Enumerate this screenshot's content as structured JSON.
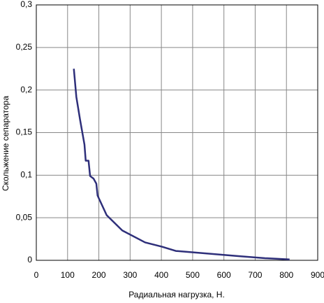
{
  "chart_data": {
    "type": "line",
    "x_label": "Радиальная нагрузка, Н.",
    "y_label": "Скольжение сепаратора",
    "series": [
      {
        "color": "#2e2f7a",
        "x": [
          120,
          128,
          140,
          154,
          158,
          167,
          172,
          183,
          192,
          196,
          225,
          275,
          348,
          402,
          446,
          643,
          732,
          810
        ],
        "values": [
          0.225,
          0.192,
          0.165,
          0.136,
          0.117,
          0.117,
          0.099,
          0.096,
          0.09,
          0.076,
          0.053,
          0.035,
          0.021,
          0.016,
          0.011,
          0.005,
          0.0025,
          0.001
        ]
      }
    ],
    "xlim": [
      0,
      900
    ],
    "xticks": [
      0,
      100,
      200,
      300,
      400,
      500,
      600,
      700,
      800,
      900
    ],
    "ylim": [
      0,
      0.3
    ],
    "yticks": [
      0,
      {
        "value": 0.05,
        "label": "0,05"
      },
      {
        "value": 0.1,
        "label": "0,1"
      },
      {
        "value": 0.15,
        "label": "0,15"
      },
      {
        "value": 0.2,
        "label": "0,2"
      },
      {
        "value": 0.25,
        "label": "0,25"
      },
      {
        "value": 0.3,
        "label": "0,3"
      }
    ],
    "grid": true
  }
}
